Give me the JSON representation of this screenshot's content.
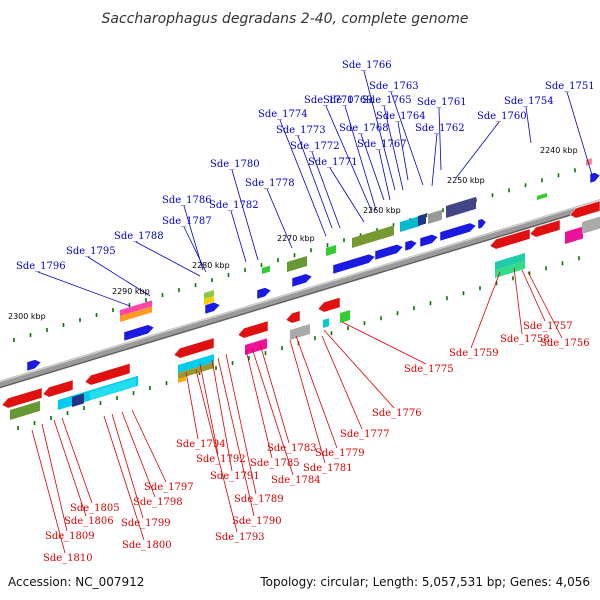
{
  "title": "Saccharophagus degradans 2-40, complete genome",
  "footer": {
    "accession": "Accession: NC_007912",
    "summary": "Topology: circular; Length: 5,057,531 bp; Genes: 4,056"
  },
  "scale": [
    "2240 kbp",
    "2250 kbp",
    "2260 kbp",
    "2270 kbp",
    "2280 kbp",
    "2290 kbp",
    "2300 kbp"
  ],
  "colors": {
    "forward_label": "#0000cc",
    "reverse_label": "#dd0000",
    "backbone": "#808080",
    "tick": "#007700"
  },
  "forward_genes": [
    "Sde_1751",
    "Sde_1754",
    "Sde_1760",
    "Sde_1761",
    "Sde_1762",
    "Sde_1763",
    "Sde_1764",
    "Sde_1765",
    "Sde_1766",
    "Sde_1767",
    "Sde_1768",
    "Sde_1769",
    "Sde_1770",
    "Sde_1771",
    "Sde_1772",
    "Sde_1773",
    "Sde_1774",
    "Sde_1778",
    "Sde_1780",
    "Sde_1782",
    "Sde_1786",
    "Sde_1787",
    "Sde_1788",
    "Sde_1795",
    "Sde_1796"
  ],
  "reverse_genes": [
    "Sde_1756",
    "Sde_1757",
    "Sde_1758",
    "Sde_1759",
    "Sde_1775",
    "Sde_1776",
    "Sde_1777",
    "Sde_1779",
    "Sde_1781",
    "Sde_1783",
    "Sde_1784",
    "Sde_1785",
    "Sde_1789",
    "Sde_1790",
    "Sde_1791",
    "Sde_1792",
    "Sde_1793",
    "Sde_1794",
    "Sde_1797",
    "Sde_1798",
    "Sde_1799",
    "Sde_1800",
    "Sde_1805",
    "Sde_1806",
    "Sde_1809",
    "Sde_1810"
  ]
}
